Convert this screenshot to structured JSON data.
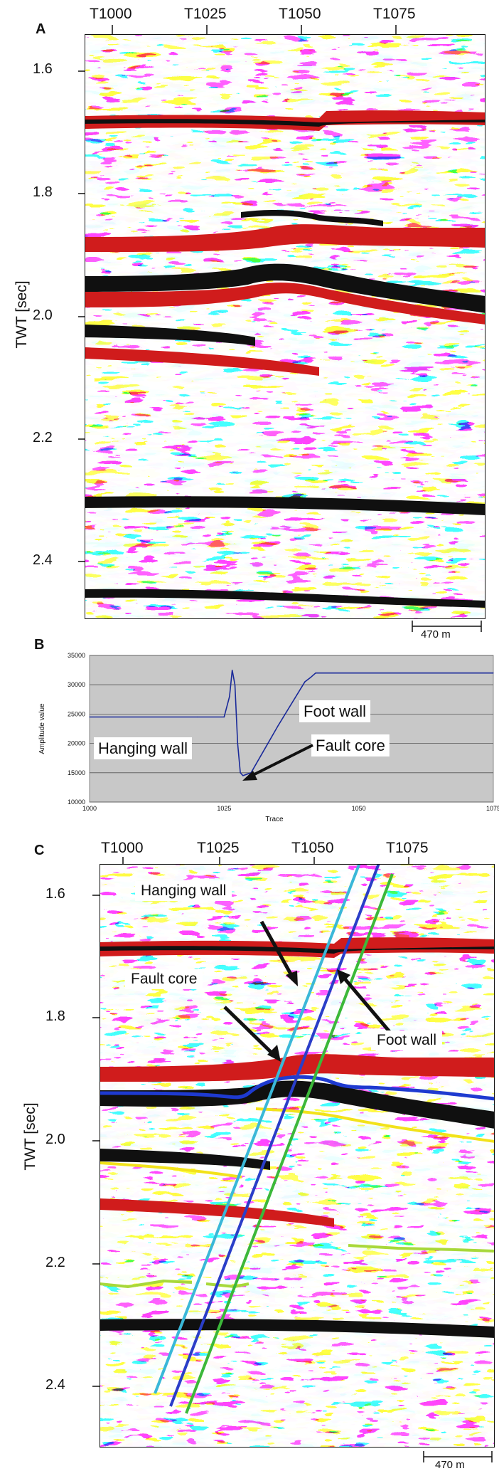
{
  "panel_a": {
    "label": "A",
    "trace_ticks": [
      {
        "label": "T1000",
        "trace": 1000
      },
      {
        "label": "T1025",
        "trace": 1025
      },
      {
        "label": "T1050",
        "trace": 1050
      },
      {
        "label": "T1075",
        "trace": 1075
      }
    ],
    "time_ticks": [
      "1.6",
      "1.8",
      "2.0",
      "2.2",
      "2.4"
    ],
    "ylabel": "TWT [sec]",
    "scale_bar": "470 m"
  },
  "panel_b": {
    "label": "B",
    "annotations": {
      "hanging_wall": "Hanging wall",
      "foot_wall": "Foot wall",
      "fault_core": "Fault core"
    }
  },
  "chart_data": {
    "type": "line",
    "xlabel": "Trace",
    "ylabel": "Amplitude value",
    "xlim": [
      1000,
      1075
    ],
    "ylim": [
      10000,
      35000
    ],
    "xticks": [
      "1000",
      "1025",
      "1050",
      "1075"
    ],
    "yticks": [
      "10000",
      "15000",
      "20000",
      "25000",
      "30000",
      "35000"
    ],
    "grid": true,
    "x": [
      1000,
      1020,
      1025,
      1026,
      1026.5,
      1027,
      1027.5,
      1028,
      1028.5,
      1030,
      1035,
      1040,
      1041,
      1042,
      1045,
      1060,
      1075
    ],
    "y": [
      24500,
      24500,
      24500,
      28000,
      32500,
      30000,
      20000,
      15000,
      14500,
      15000,
      23000,
      30500,
      31200,
      32000,
      32000,
      32000,
      32000
    ]
  },
  "panel_c": {
    "label": "C",
    "trace_ticks": [
      {
        "label": "T1000",
        "trace": 1000
      },
      {
        "label": "T1025",
        "trace": 1025
      },
      {
        "label": "T1050",
        "trace": 1050
      },
      {
        "label": "T1075",
        "trace": 1075
      }
    ],
    "time_ticks": [
      "1.6",
      "1.8",
      "2.0",
      "2.2",
      "2.4"
    ],
    "ylabel": "TWT [sec]",
    "scale_bar": "470 m",
    "annotations": {
      "hanging_wall": "Hanging wall",
      "fault_core": "Fault core",
      "foot_wall": "Foot wall"
    }
  },
  "colors": {
    "seismic_red": "#d01c1c",
    "seismic_black": "#101010",
    "line_blue": "#1a2a9a",
    "fault_cyan": "#3ab8d8",
    "fault_blue": "#2a3ec8",
    "fault_green": "#3cb83a",
    "horizon_yellow": "#f2e21a",
    "horizon_blue": "#1e3ad0",
    "horizon_lime": "#a8d83a",
    "chart_bg": "#c8c8c8"
  }
}
